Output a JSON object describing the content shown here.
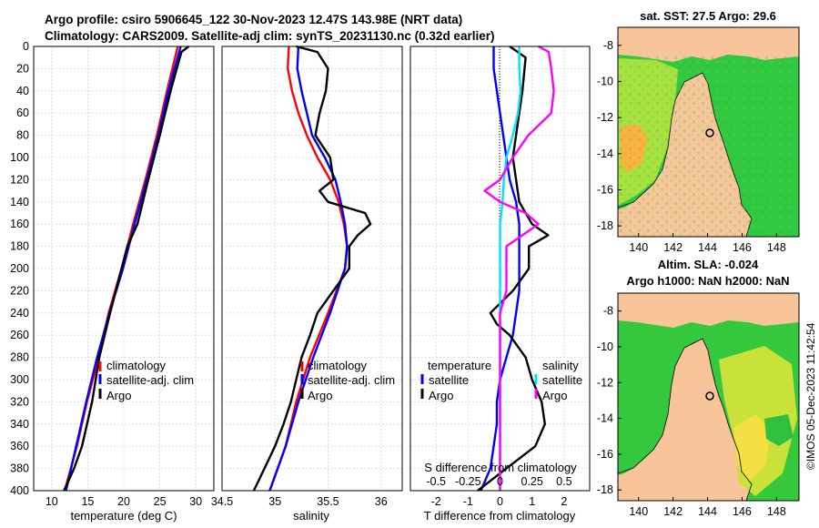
{
  "header": {
    "line1": "Argo profile: csiro 5906645_122 30-Nov-2023 12.47S 143.98E (NRT data)",
    "line2": "Climatology: CARS2009. Satellite-adj clim: synTS_20231130.nc (0.32d earlier)"
  },
  "maps": {
    "sst_title": "sat. SST: 27.5 Argo: 29.6",
    "sla_title1": "Altim. SLA: -0.024",
    "sla_title2": "Argo h1000: NaN h2000: NaN",
    "credit": "©IMOS 05-Dec-2023 11:42:54",
    "lon_ticks": [
      "140",
      "142",
      "144",
      "146",
      "148"
    ],
    "lat_ticks": [
      "-8",
      "-10",
      "-12",
      "-14",
      "-16",
      "-18"
    ],
    "land_color": "#f8c59a",
    "float_position": {
      "lon": 143.98,
      "lat": -12.47
    }
  },
  "chart_data": [
    {
      "type": "line",
      "panel": "temperature",
      "xlabel": "temperature (deg C)",
      "ylabel": "depth",
      "xlim": [
        7.5,
        32.5
      ],
      "ylim": [
        400,
        0
      ],
      "xticks": [
        "10",
        "15",
        "20",
        "25",
        "30"
      ],
      "yticks": [
        "0",
        "20",
        "40",
        "60",
        "80",
        "100",
        "120",
        "140",
        "160",
        "180",
        "200",
        "220",
        "240",
        "260",
        "280",
        "300",
        "320",
        "340",
        "360",
        "380",
        "400"
      ],
      "legend": [
        "climatology",
        "satellite-adj. clim",
        "Argo"
      ],
      "series": [
        {
          "name": "climatology",
          "color": "#ff0000",
          "depth": [
            0,
            40,
            80,
            120,
            160,
            200,
            240,
            280,
            320,
            360,
            400
          ],
          "values": [
            27.5,
            26.0,
            24.6,
            23.0,
            21.3,
            19.7,
            17.9,
            16.5,
            14.9,
            13.5,
            11.8
          ]
        },
        {
          "name": "satellite-adj. clim",
          "color": "#0000ff",
          "depth": [
            0,
            40,
            80,
            120,
            160,
            200,
            240,
            280,
            320,
            360,
            400
          ],
          "values": [
            27.9,
            26.2,
            24.8,
            23.2,
            21.5,
            19.9,
            18.0,
            16.3,
            14.8,
            13.4,
            12.0
          ]
        },
        {
          "name": "Argo",
          "color": "#000000",
          "depth": [
            0,
            5,
            40,
            80,
            120,
            160,
            180,
            200,
            240,
            280,
            320,
            360,
            380,
            400
          ],
          "values": [
            29.0,
            28.0,
            26.5,
            25.0,
            23.4,
            21.9,
            20.5,
            19.7,
            18.1,
            16.6,
            15.6,
            14.2,
            13.1,
            11.7
          ]
        }
      ]
    },
    {
      "type": "line",
      "panel": "salinity",
      "xlabel": "salinity",
      "xlim": [
        34.5,
        36.2
      ],
      "ylim": [
        400,
        0
      ],
      "xticks": [
        "34.5",
        "35",
        "35.5",
        "36"
      ],
      "legend": [
        "climatology",
        "satellite-adj. clim",
        "Argo"
      ],
      "series": [
        {
          "name": "climatology",
          "color": "#ff0000",
          "depth": [
            0,
            20,
            40,
            60,
            80,
            100,
            120,
            140,
            160,
            180,
            200,
            240,
            280,
            320,
            360,
            400
          ],
          "values": [
            35.13,
            35.12,
            35.16,
            35.22,
            35.3,
            35.4,
            35.52,
            35.6,
            35.65,
            35.68,
            35.66,
            35.5,
            35.33,
            35.2,
            35.1,
            34.95
          ]
        },
        {
          "name": "satellite-adj. clim",
          "color": "#0000ff",
          "depth": [
            0,
            20,
            40,
            60,
            80,
            100,
            120,
            140,
            160,
            180,
            200,
            240,
            280,
            320,
            360,
            400
          ],
          "values": [
            35.22,
            35.21,
            35.25,
            35.3,
            35.35,
            35.47,
            35.57,
            35.62,
            35.66,
            35.68,
            35.66,
            35.52,
            35.36,
            35.22,
            35.1,
            34.95
          ]
        },
        {
          "name": "Argo",
          "color": "#000000",
          "depth": [
            0,
            5,
            20,
            40,
            60,
            80,
            100,
            120,
            130,
            140,
            150,
            160,
            170,
            180,
            200,
            220,
            240,
            260,
            280,
            300,
            320,
            340,
            360,
            380,
            400
          ],
          "values": [
            35.2,
            35.4,
            35.5,
            35.48,
            35.42,
            35.38,
            35.52,
            35.55,
            35.42,
            35.5,
            35.85,
            35.9,
            35.78,
            35.7,
            35.7,
            35.55,
            35.4,
            35.33,
            35.25,
            35.2,
            35.15,
            35.08,
            35.0,
            34.9,
            34.8
          ]
        }
      ]
    },
    {
      "type": "line",
      "panel": "difference",
      "xlabel": "T difference from climatology",
      "xlabel_top": "S difference from climatology",
      "xlim": [
        -2.8,
        2.8
      ],
      "ylim": [
        400,
        0
      ],
      "xticks": [
        "-2",
        "-1",
        "0",
        "1",
        "2"
      ],
      "xticks_top": [
        "-0.5",
        "-0.25",
        "0",
        "0.25",
        "0.5"
      ],
      "legend_temperature": [
        "temperature",
        "satellite",
        "Argo"
      ],
      "legend_salinity": [
        "salinity",
        "satellite",
        "Argo"
      ],
      "series": [
        {
          "name": "temperature satellite",
          "color": "#0000ff",
          "depth": [
            0,
            20,
            40,
            60,
            80,
            100,
            120,
            140,
            160,
            180,
            200,
            220,
            240,
            260,
            280,
            300,
            320,
            340,
            360,
            380,
            400
          ],
          "values": [
            -0.2,
            -0.2,
            -0.1,
            0.0,
            0.1,
            0.2,
            0.3,
            0.5,
            0.6,
            0.6,
            0.6,
            0.6,
            0.5,
            0.4,
            0.2,
            0.0,
            -0.1,
            -0.1,
            -0.2,
            -0.3,
            -0.6
          ]
        },
        {
          "name": "temperature Argo",
          "color": "#000000",
          "depth": [
            0,
            10,
            40,
            80,
            100,
            140,
            160,
            170,
            180,
            200,
            220,
            240,
            250,
            260,
            280,
            300,
            320,
            340,
            360,
            380,
            400
          ],
          "values": [
            0.3,
            0.8,
            0.7,
            0.5,
            0.4,
            0.6,
            1.0,
            1.5,
            0.9,
            0.9,
            0.4,
            -0.3,
            -0.1,
            0.3,
            0.8,
            1.0,
            1.3,
            1.4,
            1.1,
            0.2,
            -0.7
          ]
        },
        {
          "name": "salinity satellite",
          "color": "#00e0ff",
          "depth": [
            0,
            20,
            40,
            60,
            80,
            100,
            120,
            140,
            160,
            180,
            200,
            240,
            280,
            320,
            360,
            400
          ],
          "values": [
            0.15,
            0.15,
            0.16,
            0.14,
            0.1,
            0.05,
            0.03,
            0.02,
            0.0,
            0.0,
            0.0,
            0.0,
            0.0,
            0.0,
            0.0,
            0.0
          ]
        },
        {
          "name": "salinity Argo",
          "color": "#ff00ff",
          "depth": [
            0,
            5,
            20,
            40,
            60,
            80,
            100,
            120,
            130,
            140,
            150,
            160,
            180,
            200,
            220,
            240,
            260,
            280,
            300,
            320,
            340,
            360,
            380,
            400
          ],
          "values": [
            0.3,
            0.38,
            0.4,
            0.42,
            0.4,
            0.22,
            0.1,
            0.0,
            -0.12,
            0.0,
            0.2,
            0.3,
            0.05,
            0.05,
            0.05,
            0.0,
            0.0,
            0.0,
            0.0,
            0.0,
            0.0,
            0.0,
            0.0,
            0.0
          ]
        }
      ]
    }
  ]
}
